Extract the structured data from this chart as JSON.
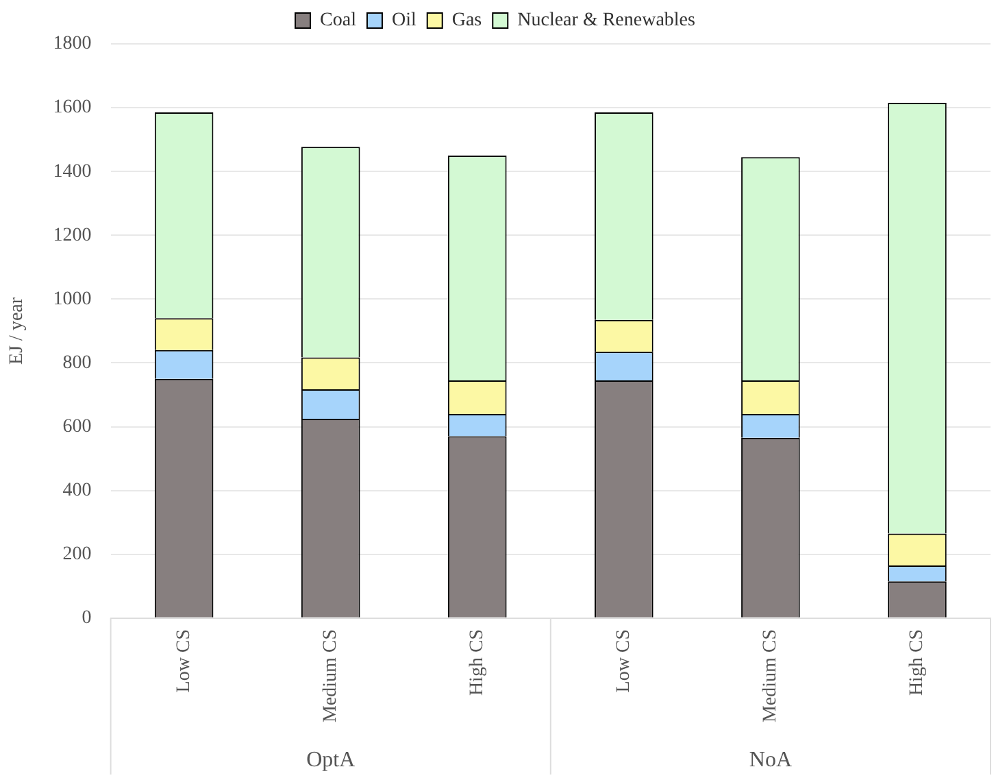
{
  "chart_data": {
    "type": "bar",
    "stacked": true,
    "ylabel": "EJ / year",
    "categories": [
      "Low CS",
      "Medium CS",
      "High CS",
      "Low CS",
      "Medium CS",
      "High CS"
    ],
    "series": [
      {
        "name": "Coal",
        "color": "#877f7f",
        "values": [
          750,
          625,
          570,
          745,
          565,
          115
        ]
      },
      {
        "name": "Oil",
        "color": "#a6d4fb",
        "values": [
          90,
          92,
          70,
          90,
          75,
          50
        ]
      },
      {
        "name": "Gas",
        "color": "#fcf8a4",
        "values": [
          100,
          100,
          105,
          100,
          105,
          100
        ]
      },
      {
        "name": "Nuclear & Renewables",
        "color": "#d3f9d3",
        "values": [
          645,
          660,
          705,
          650,
          700,
          1350
        ]
      }
    ],
    "annotations": [
      "OptA",
      "NoA"
    ],
    "ylim": [
      0,
      1800
    ],
    "yticks": [
      0,
      200,
      400,
      600,
      800,
      1000,
      1200,
      1400,
      1600,
      1800
    ],
    "grid": "y",
    "legend": "top"
  }
}
